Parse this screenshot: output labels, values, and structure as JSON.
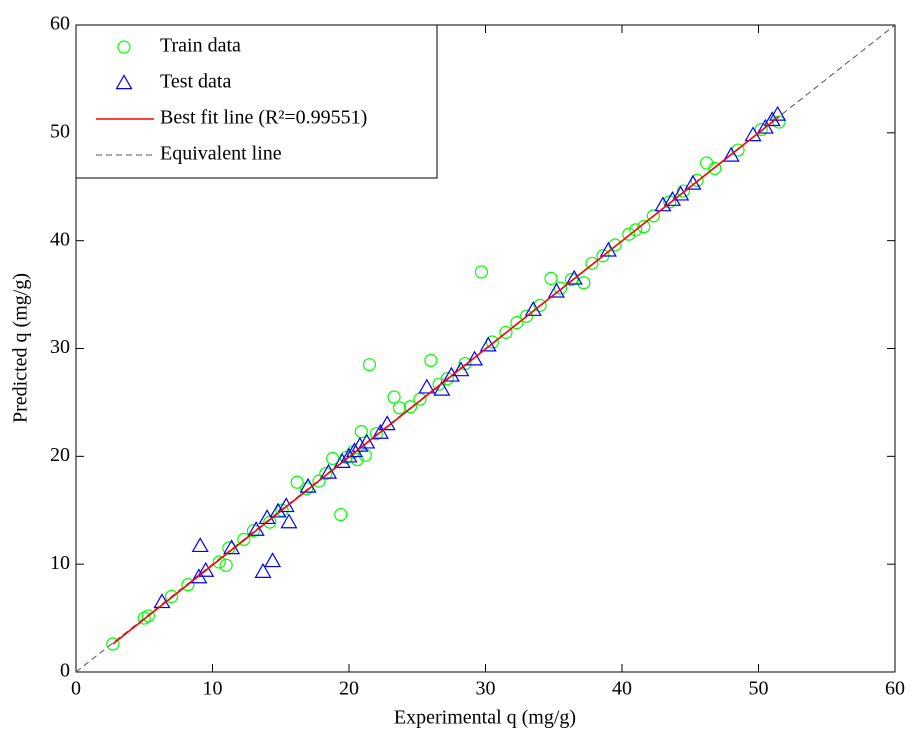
{
  "chart_data": {
    "type": "scatter",
    "xlabel": "Experimental q (mg/g)",
    "ylabel": "Predicted q (mg/g)",
    "xlim": [
      0,
      60
    ],
    "ylim": [
      0,
      60
    ],
    "xticks": [
      0,
      10,
      20,
      30,
      40,
      50,
      60
    ],
    "yticks": [
      0,
      10,
      20,
      30,
      40,
      50,
      60
    ],
    "legend": "upper left",
    "series": [
      {
        "name": "Train data",
        "marker": "circle",
        "color": "#00ff00",
        "x": [
          2.7,
          5.0,
          5.3,
          7.0,
          8.2,
          10.5,
          11.0,
          11.2,
          12.3,
          13.0,
          14.2,
          15.1,
          16.2,
          16.9,
          17.8,
          18.3,
          18.8,
          19.4,
          19.8,
          20.3,
          20.6,
          20.9,
          21.2,
          21.5,
          22.0,
          23.3,
          23.7,
          24.5,
          25.2,
          26.0,
          26.6,
          27.2,
          28.5,
          29.7,
          30.5,
          31.5,
          32.3,
          33.0,
          34.0,
          34.8,
          35.5,
          36.3,
          37.2,
          37.8,
          38.6,
          39.5,
          40.5,
          41.0,
          41.6,
          42.3,
          43.5,
          44.5,
          45.5,
          46.2,
          46.8,
          48.5,
          50.2,
          51.5
        ],
        "values": [
          2.6,
          5.0,
          5.2,
          7.0,
          8.1,
          10.2,
          9.9,
          11.5,
          12.3,
          13.1,
          13.9,
          15.0,
          17.6,
          17.0,
          17.7,
          18.4,
          19.8,
          14.6,
          19.9,
          20.4,
          19.7,
          22.3,
          20.1,
          28.5,
          22.1,
          25.5,
          24.5,
          24.6,
          25.3,
          28.9,
          26.7,
          27.2,
          28.6,
          37.1,
          30.6,
          31.5,
          32.4,
          33.0,
          34.0,
          36.5,
          35.6,
          36.4,
          36.1,
          37.9,
          38.6,
          39.6,
          40.6,
          41.0,
          41.3,
          42.3,
          43.6,
          44.6,
          45.6,
          47.2,
          46.7,
          48.4,
          50.3,
          51.0
        ]
      },
      {
        "name": "Test data",
        "marker": "triangle",
        "color": "#0000ff",
        "x": [
          6.3,
          9.0,
          9.1,
          9.5,
          11.4,
          13.2,
          13.7,
          14.0,
          14.4,
          14.8,
          15.4,
          15.6,
          17.0,
          18.5,
          19.5,
          20.0,
          20.4,
          20.8,
          21.3,
          22.3,
          22.8,
          25.7,
          26.8,
          27.5,
          28.2,
          29.2,
          30.2,
          33.5,
          35.2,
          36.5,
          39.0,
          43.0,
          43.7,
          44.3,
          45.2,
          48.0,
          49.6,
          50.5,
          51.0,
          51.4
        ],
        "values": [
          6.5,
          8.8,
          11.7,
          9.4,
          11.5,
          13.2,
          9.3,
          14.3,
          10.3,
          14.9,
          15.4,
          13.9,
          17.2,
          18.5,
          19.5,
          20.0,
          20.5,
          21.0,
          21.3,
          22.2,
          23.0,
          26.4,
          26.2,
          27.5,
          28.0,
          29.0,
          30.3,
          33.6,
          35.3,
          36.5,
          39.1,
          43.3,
          43.8,
          44.3,
          45.3,
          47.9,
          49.8,
          50.5,
          51.2,
          51.7
        ]
      },
      {
        "name": "Best fit line (R²=0.99551)",
        "marker": "line",
        "color": "#ff0000",
        "x": [
          2.7,
          51.5
        ],
        "values": [
          2.6,
          51.5
        ]
      },
      {
        "name": "Equivalent line",
        "marker": "dashed",
        "color": "#555555",
        "x": [
          0,
          60
        ],
        "values": [
          0,
          60
        ]
      }
    ]
  }
}
